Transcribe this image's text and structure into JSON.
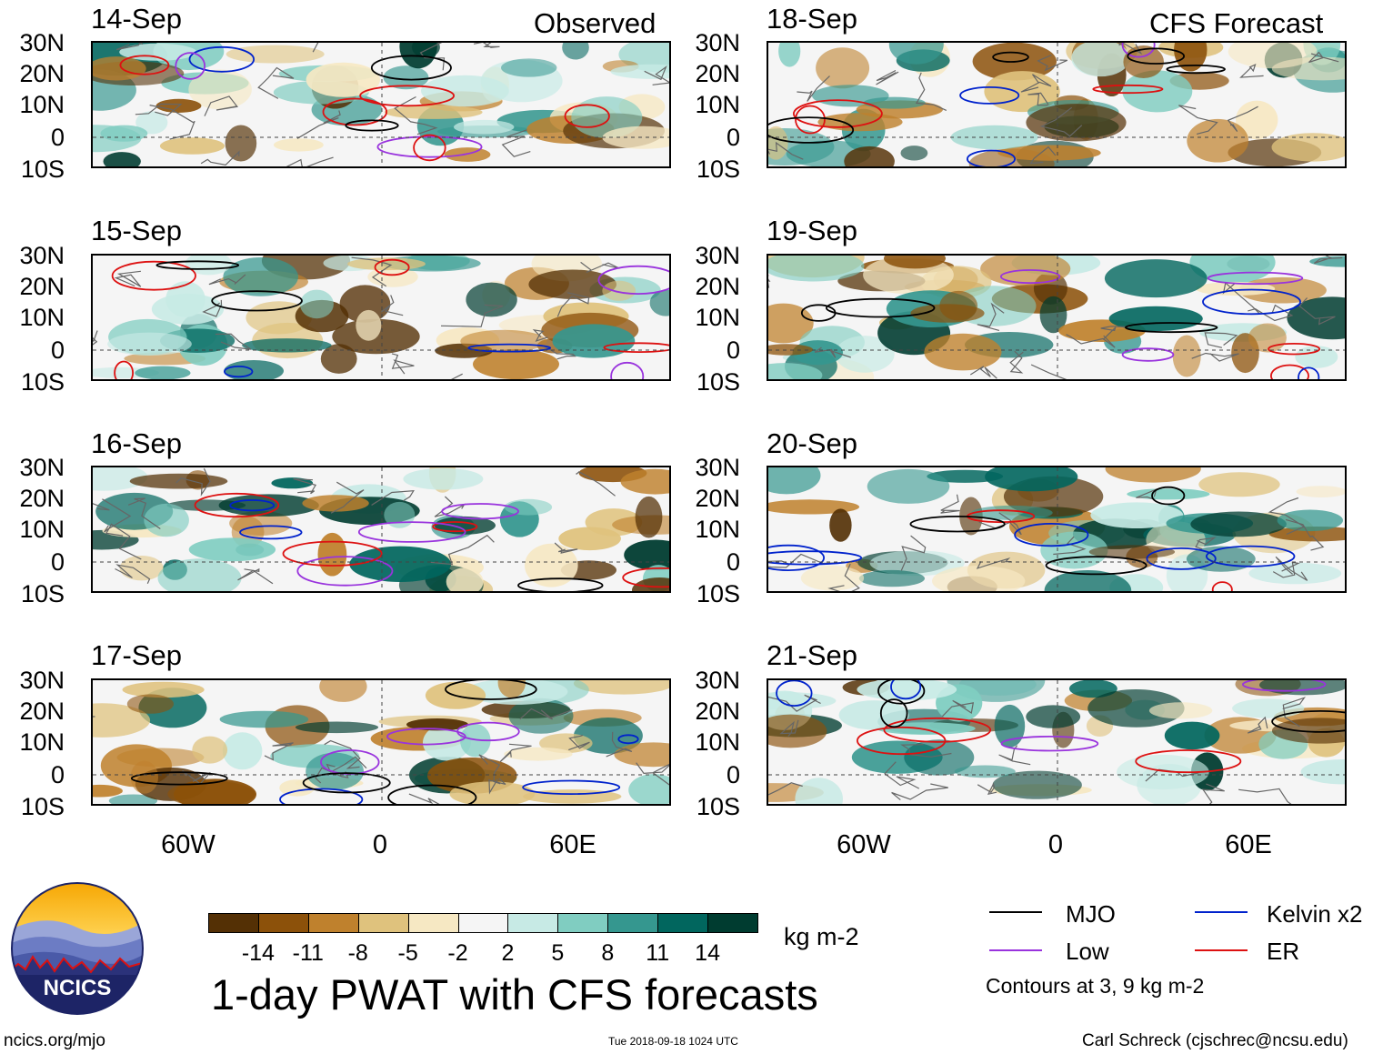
{
  "observed_label": "Observed",
  "forecast_label": "CFS Forecast",
  "observed_panels": [
    {
      "date": "14-Sep"
    },
    {
      "date": "15-Sep"
    },
    {
      "date": "16-Sep"
    },
    {
      "date": "17-Sep"
    }
  ],
  "forecast_panels": [
    {
      "date": "18-Sep"
    },
    {
      "date": "19-Sep"
    },
    {
      "date": "20-Sep"
    },
    {
      "date": "21-Sep"
    }
  ],
  "lat_labels": [
    "30N",
    "20N",
    "10N",
    "0",
    "10S"
  ],
  "lon_labels": [
    "60W",
    "0",
    "60E"
  ],
  "colorbar": {
    "colors": [
      "#543005",
      "#8c510a",
      "#bf812d",
      "#dfc27d",
      "#f6e8c3",
      "#f5f5f5",
      "#c7eae5",
      "#80cdc1",
      "#35978f",
      "#01665e",
      "#003c30"
    ],
    "ticks": [
      "-14",
      "-11",
      "-8",
      "-5",
      "-2",
      "2",
      "5",
      "8",
      "11",
      "14"
    ],
    "units": "kg m-2"
  },
  "title": "1-day PWAT with CFS forecasts",
  "legend": {
    "items": [
      {
        "label": "MJO",
        "color": "#000000"
      },
      {
        "label": "Kelvin x2",
        "color": "#0022cc"
      },
      {
        "label": "Low",
        "color": "#9933dd"
      },
      {
        "label": "ER",
        "color": "#dd1111"
      }
    ],
    "note": "Contours at 3, 9 kg m-2"
  },
  "logo_text": "NCICS",
  "footer": {
    "left": "ncics.org/mjo",
    "center": "Tue 2018-09-18 1024 UTC",
    "right": "Carl Schreck (cjschrec@ncsu.edu)"
  }
}
